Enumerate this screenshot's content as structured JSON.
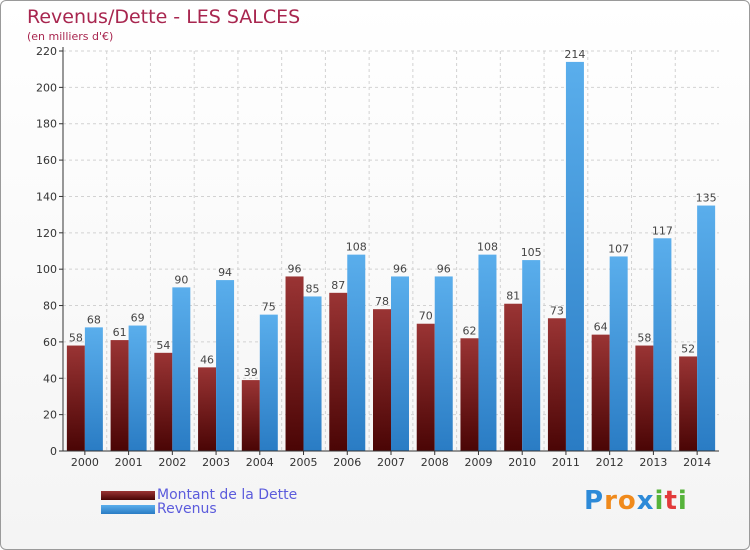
{
  "title": "Revenus/Dette - LES SALCES",
  "subtitle": "(en milliers d'€)",
  "legend": [
    {
      "label": "Montant de la Dette",
      "color": "#6e1111"
    },
    {
      "label": "Revenus",
      "color": "#3c96e0"
    }
  ],
  "logo": {
    "text": "Proxiti",
    "letters": [
      {
        "ch": "P",
        "color": "#2d8ad8"
      },
      {
        "ch": "r",
        "color": "#f08a1c"
      },
      {
        "ch": "o",
        "color": "#f08a1c"
      },
      {
        "ch": "x",
        "color": "#2d8ad8"
      },
      {
        "ch": "i",
        "color": "#56b33a"
      },
      {
        "ch": "t",
        "color": "#e23a3a"
      },
      {
        "ch": "i",
        "color": "#56b33a"
      }
    ]
  },
  "chart_data": {
    "type": "bar",
    "categories": [
      "2000",
      "2001",
      "2002",
      "2003",
      "2004",
      "2005",
      "2006",
      "2007",
      "2008",
      "2009",
      "2010",
      "2011",
      "2012",
      "2013",
      "2014"
    ],
    "series": [
      {
        "name": "Montant de la Dette",
        "values": [
          58,
          61,
          54,
          46,
          39,
          96,
          87,
          78,
          70,
          62,
          81,
          73,
          64,
          58,
          52
        ],
        "color": "#6e1111"
      },
      {
        "name": "Revenus",
        "values": [
          68,
          69,
          90,
          94,
          75,
          85,
          108,
          96,
          96,
          108,
          105,
          214,
          107,
          117,
          135
        ],
        "color": "#3c96e0"
      }
    ],
    "ylim": [
      0,
      220
    ],
    "yticks": [
      0,
      20,
      40,
      60,
      80,
      100,
      120,
      140,
      160,
      180,
      200,
      220
    ],
    "grid": true,
    "data_labels": true
  }
}
